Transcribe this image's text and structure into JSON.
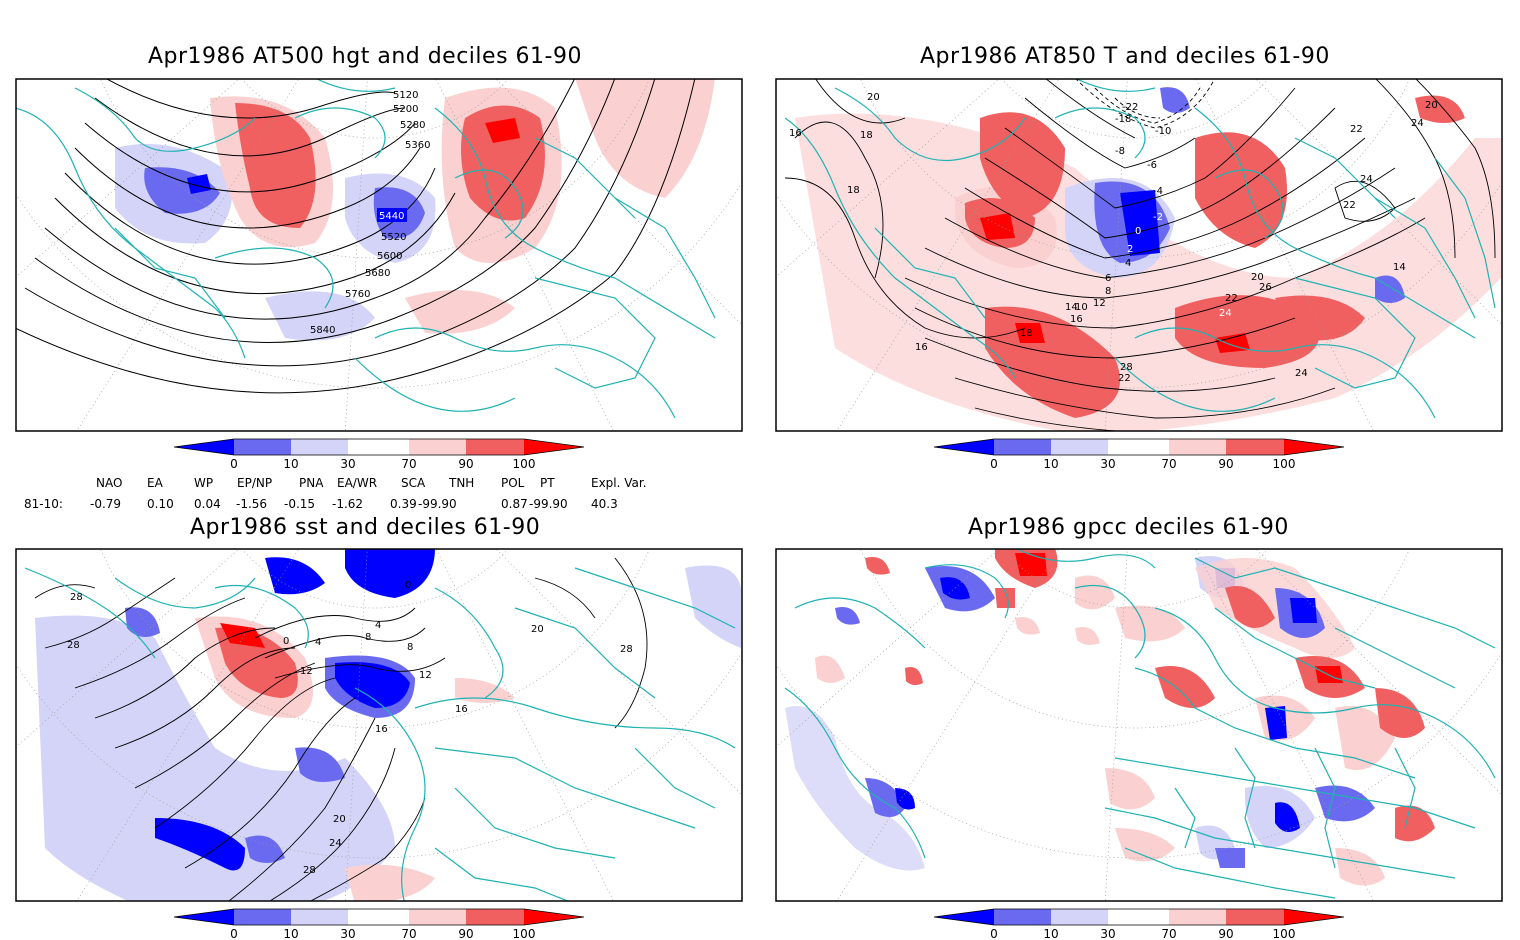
{
  "panels": [
    {
      "title": "Apr1986 AT500 hgt and deciles 61-90",
      "contour_labels": [
        "5120",
        "5200",
        "5280",
        "5360",
        "5440",
        "5520",
        "5600",
        "5680",
        "5760",
        "5840"
      ]
    },
    {
      "title": "Apr1986 AT850 T and deciles 61-90",
      "contour_labels": [
        "20",
        "18",
        "16",
        "18",
        "-22",
        "-18",
        "-10",
        "-8",
        "-6",
        "-4",
        "-2",
        "0",
        "2",
        "4",
        "6",
        "8",
        "10",
        "12",
        "14",
        "16",
        "18",
        "20",
        "22",
        "24",
        "26",
        "28",
        "24",
        "22",
        "20",
        "24",
        "22",
        "24",
        "22",
        "14",
        "16",
        "16"
      ]
    },
    {
      "title": "Apr1986 sst and deciles 61-90",
      "contour_labels": [
        "28",
        "28",
        "0",
        "4",
        "8",
        "12",
        "16",
        "20",
        "24",
        "28",
        "0",
        "4",
        "8",
        "12",
        "16",
        "20",
        "28"
      ]
    },
    {
      "title": "Apr1986 gpcc deciles 61-90",
      "contour_labels": []
    }
  ],
  "colorbar": {
    "ticks": [
      "0",
      "10",
      "30",
      "70",
      "90",
      "100"
    ],
    "colors": [
      "#0000ff",
      "#6a6af0",
      "#d4d4f8",
      "#ffffff",
      "#fbd0d0",
      "#f06060",
      "#ff0000"
    ]
  },
  "indices": {
    "headers": [
      "NAO",
      "EA",
      "WP",
      "EP/NP",
      "PNA",
      "EA/WR",
      "SCA",
      "TNH",
      "POL",
      "PT",
      "Expl. Var."
    ],
    "row_label": "81-10:",
    "values": [
      "-0.79",
      "0.10",
      "0.04",
      "-1.56",
      "-0.15",
      "-1.62",
      "0.39",
      "-99.90",
      "0.87",
      "-99.90",
      "40.3"
    ]
  },
  "colors": {
    "coastline": "#20b2b2",
    "frame": "#000000",
    "contour": "#000000"
  }
}
